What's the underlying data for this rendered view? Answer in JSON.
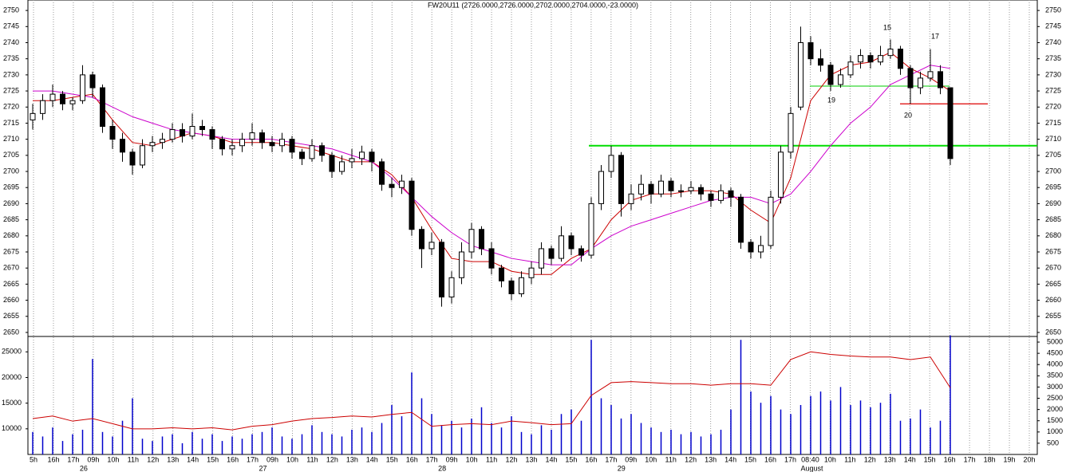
{
  "chart_data": {
    "type": "candlestick",
    "title": "FW20U11 (2726.0000,2726.0000,2702.0000,2704.0000,-23.0000)",
    "categories": [
      "5h",
      "16h",
      "17h",
      "09h",
      "10h",
      "11h",
      "12h",
      "13h",
      "14h",
      "15h",
      "16h",
      "17h",
      "09h",
      "10h",
      "11h",
      "12h",
      "13h",
      "14h",
      "15h",
      "16h",
      "17h",
      "09h",
      "10h",
      "11h",
      "12h",
      "13h",
      "14h",
      "15h",
      "16h",
      "17h",
      "09h",
      "10h",
      "11h",
      "12h",
      "13h",
      "14h",
      "15h",
      "16h",
      "17h",
      "08:40",
      "10h",
      "11h",
      "12h",
      "13h",
      "14h",
      "15h",
      "16h",
      "17h",
      "18h",
      "19h",
      "20h"
    ],
    "day_labels": [
      "26",
      "27",
      "28",
      "29",
      "August"
    ],
    "candles": [
      [
        2716,
        2721,
        2713,
        2718
      ],
      [
        2718,
        2724,
        2716,
        2722
      ],
      [
        2722,
        2727,
        2720,
        2724
      ],
      [
        2724,
        2725,
        2719,
        2721
      ],
      [
        2721,
        2723,
        2719,
        2722
      ],
      [
        2722,
        2733,
        2721,
        2730
      ],
      [
        2730,
        2731,
        2723,
        2726
      ],
      [
        2726,
        2727,
        2712,
        2714
      ],
      [
        2714,
        2716,
        2707,
        2710
      ],
      [
        2710,
        2712,
        2703,
        2706
      ],
      [
        2706,
        2707,
        2699,
        2702
      ],
      [
        2702,
        2710,
        2701,
        2708
      ],
      [
        2708,
        2711,
        2706,
        2709
      ],
      [
        2709,
        2712,
        2707,
        2710
      ],
      [
        2710,
        2715,
        2709,
        2713
      ],
      [
        2713,
        2715,
        2709,
        2711
      ],
      [
        2711,
        2718,
        2710,
        2714
      ],
      [
        2714,
        2716,
        2711,
        2713
      ],
      [
        2713,
        2714,
        2707,
        2710
      ],
      [
        2710,
        2711,
        2705,
        2707
      ],
      [
        2707,
        2710,
        2705,
        2708
      ],
      [
        2708,
        2712,
        2706,
        2710
      ],
      [
        2710,
        2715,
        2708,
        2712
      ],
      [
        2712,
        2713,
        2707,
        2709
      ],
      [
        2709,
        2711,
        2706,
        2708
      ],
      [
        2708,
        2712,
        2706,
        2710
      ],
      [
        2710,
        2711,
        2704,
        2706
      ],
      [
        2706,
        2707,
        2702,
        2704
      ],
      [
        2704,
        2710,
        2703,
        2708
      ],
      [
        2708,
        2709,
        2703,
        2705
      ],
      [
        2705,
        2706,
        2698,
        2700
      ],
      [
        2700,
        2705,
        2699,
        2703
      ],
      [
        2703,
        2707,
        2701,
        2704
      ],
      [
        2704,
        2708,
        2702,
        2706
      ],
      [
        2706,
        2707,
        2700,
        2703
      ],
      [
        2703,
        2704,
        2694,
        2696
      ],
      [
        2696,
        2698,
        2692,
        2695
      ],
      [
        2695,
        2699,
        2693,
        2697
      ],
      [
        2697,
        2698,
        2680,
        2682
      ],
      [
        2682,
        2683,
        2670,
        2676
      ],
      [
        2676,
        2681,
        2674,
        2678
      ],
      [
        2678,
        2679,
        2658,
        2661
      ],
      [
        2661,
        2669,
        2659,
        2667
      ],
      [
        2667,
        2678,
        2665,
        2675
      ],
      [
        2675,
        2684,
        2673,
        2682
      ],
      [
        2682,
        2683,
        2674,
        2676
      ],
      [
        2676,
        2678,
        2668,
        2670
      ],
      [
        2670,
        2671,
        2664,
        2666
      ],
      [
        2666,
        2667,
        2660,
        2662
      ],
      [
        2662,
        2669,
        2661,
        2667
      ],
      [
        2667,
        2672,
        2665,
        2670
      ],
      [
        2670,
        2678,
        2668,
        2676
      ],
      [
        2676,
        2677,
        2671,
        2673
      ],
      [
        2673,
        2683,
        2672,
        2680
      ],
      [
        2680,
        2681,
        2674,
        2676
      ],
      [
        2676,
        2677,
        2672,
        2674
      ],
      [
        2674,
        2692,
        2673,
        2690
      ],
      [
        2690,
        2702,
        2688,
        2700
      ],
      [
        2700,
        2708,
        2698,
        2705
      ],
      [
        2705,
        2706,
        2686,
        2690
      ],
      [
        2690,
        2696,
        2688,
        2693
      ],
      [
        2693,
        2699,
        2691,
        2696
      ],
      [
        2696,
        2697,
        2690,
        2693
      ],
      [
        2693,
        2699,
        2692,
        2697
      ],
      [
        2697,
        2698,
        2692,
        2694
      ],
      [
        2694,
        2696,
        2692,
        2694
      ],
      [
        2694,
        2697,
        2693,
        2695
      ],
      [
        2695,
        2696,
        2691,
        2693
      ],
      [
        2693,
        2694,
        2689,
        2691
      ],
      [
        2691,
        2696,
        2690,
        2694
      ],
      [
        2694,
        2695,
        2689,
        2692
      ],
      [
        2692,
        2693,
        2676,
        2678
      ],
      [
        2678,
        2679,
        2673,
        2675
      ],
      [
        2675,
        2680,
        2673,
        2677
      ],
      [
        2677,
        2694,
        2676,
        2692
      ],
      [
        2692,
        2708,
        2690,
        2706
      ],
      [
        2706,
        2720,
        2704,
        2718
      ],
      [
        2720,
        2745,
        2719,
        2740
      ],
      [
        2740,
        2742,
        2733,
        2735
      ],
      [
        2735,
        2738,
        2731,
        2733
      ],
      [
        2733,
        2734,
        2725,
        2727
      ],
      [
        2727,
        2732,
        2726,
        2730
      ],
      [
        2730,
        2736,
        2729,
        2734
      ],
      [
        2734,
        2738,
        2732,
        2736
      ],
      [
        2736,
        2737,
        2732,
        2734
      ],
      [
        2734,
        2739,
        2733,
        2736
      ],
      [
        2736,
        2741,
        2735,
        2738
      ],
      [
        2738,
        2739,
        2730,
        2732
      ],
      [
        2732,
        2733,
        2721,
        2726
      ],
      [
        2726,
        2731,
        2724,
        2729
      ],
      [
        2729,
        2738,
        2728,
        2731
      ],
      [
        2731,
        2733,
        2724,
        2726
      ],
      [
        2726,
        2726,
        2702,
        2704
      ]
    ],
    "ylim": [
      2648.75,
      2753.25
    ],
    "yticks": [
      2650,
      2655,
      2660,
      2665,
      2670,
      2675,
      2680,
      2685,
      2690,
      2695,
      2700,
      2705,
      2710,
      2715,
      2720,
      2725,
      2730,
      2735,
      2740,
      2745,
      2750
    ],
    "overlays": [
      {
        "color": "#cc0000",
        "values": [
          2722,
          2722,
          2723,
          2724,
          2716,
          2709,
          2708,
          2710,
          2712,
          2711,
          2709,
          2709,
          2709,
          2708,
          2707,
          2705,
          2703,
          2703,
          2699,
          2692,
          2682,
          2673,
          2672,
          2672,
          2669,
          2668,
          2668,
          2673,
          2676,
          2685,
          2691,
          2693,
          2693,
          2694,
          2694,
          2693,
          2688,
          2684,
          2698,
          2722,
          2730,
          2733,
          2734,
          2737,
          2732,
          2729,
          2725
        ]
      },
      {
        "color": "#cc00cc",
        "values": [
          2725,
          2725,
          2724,
          2723,
          2720,
          2717,
          2715,
          2713,
          2712,
          2711,
          2710,
          2710,
          2710,
          2709,
          2708,
          2707,
          2705,
          2703,
          2698,
          2692,
          2686,
          2681,
          2677,
          2675,
          2673,
          2672,
          2671,
          2671,
          2676,
          2680,
          2683,
          2685,
          2687,
          2689,
          2691,
          2692,
          2692,
          2690,
          2693,
          2700,
          2708,
          2715,
          2720,
          2727,
          2730,
          2733,
          2732
        ]
      }
    ],
    "levels": [
      {
        "value": 2708,
        "color": "#00dd00"
      },
      {
        "value": 2726.5,
        "color": "#00cc00"
      },
      {
        "value": 2721,
        "color": "#dd0000"
      }
    ],
    "annotations": [
      {
        "text": "15",
        "color": "#00cc00"
      },
      {
        "text": "17",
        "color": "#00cc00"
      },
      {
        "text": "19",
        "color": "#dd0000"
      },
      {
        "text": "20",
        "color": "#dd0000"
      }
    ],
    "volume": {
      "color": "#0000cc",
      "y2lim": [
        0,
        5250
      ],
      "y2ticks": [
        500,
        1000,
        1500,
        2000,
        2500,
        3000,
        3500,
        4000,
        4500,
        5000
      ],
      "values": [
        1000,
        800,
        1200,
        600,
        900,
        1100,
        4250,
        1000,
        800,
        1500,
        2500,
        700,
        600,
        800,
        900,
        500,
        1000,
        700,
        900,
        600,
        800,
        700,
        900,
        1000,
        1200,
        800,
        700,
        900,
        1300,
        1000,
        900,
        800,
        1100,
        1200,
        1000,
        1400,
        2200,
        1700,
        3650,
        2500,
        1800,
        1300,
        1500,
        1200,
        1600,
        2100,
        1400,
        1200,
        1700,
        1000,
        900,
        1300,
        1100,
        1800,
        2000,
        1500,
        5100,
        2500,
        2200,
        1600,
        1800,
        1400,
        1200,
        1000,
        1100,
        900,
        1000,
        800,
        900,
        1100,
        2000,
        5100,
        2800,
        2300,
        2600,
        2000,
        1800,
        2200,
        2600,
        2800,
        2400,
        3000,
        2200,
        2400,
        2100,
        2300,
        2700,
        1500,
        1600,
        2000,
        1200,
        1500,
        5300
      ]
    },
    "open_interest": {
      "color": "#cc0000",
      "ylim": [
        5000,
        28000
      ],
      "yticks": [
        10000,
        15000,
        20000,
        25000
      ],
      "values": [
        12000,
        12500,
        11500,
        12000,
        11000,
        10000,
        10000,
        10200,
        10000,
        10200,
        9800,
        10500,
        10800,
        11500,
        12000,
        12200,
        12500,
        12300,
        12800,
        13200,
        10500,
        10800,
        11000,
        10800,
        11500,
        11200,
        10800,
        11000,
        16500,
        19000,
        19200,
        19000,
        18800,
        18800,
        18500,
        18800,
        18800,
        18500,
        23500,
        25000,
        24500,
        24200,
        24000,
        24000,
        23500,
        24000,
        18000
      ]
    }
  }
}
